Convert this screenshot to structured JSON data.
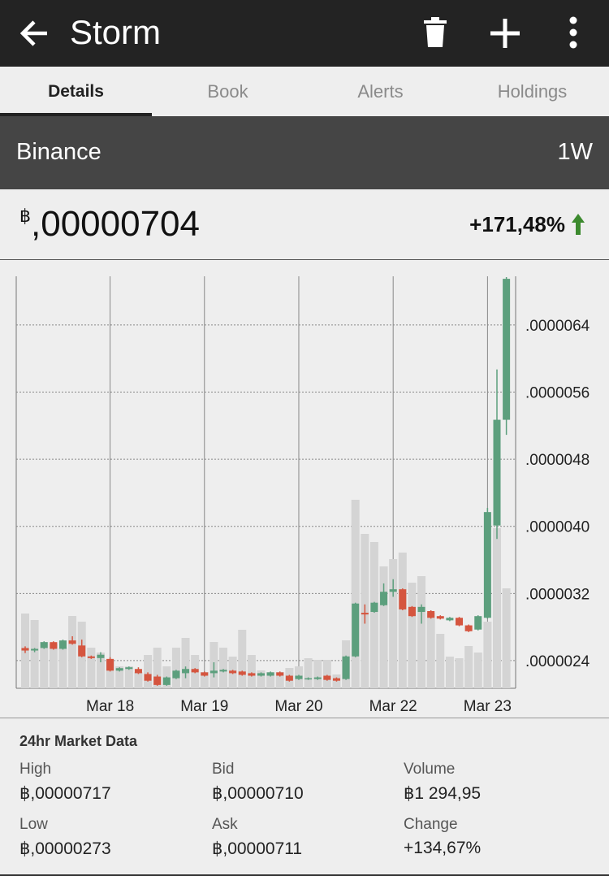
{
  "header": {
    "title": "Storm"
  },
  "tabs": [
    "Details",
    "Book",
    "Alerts",
    "Holdings"
  ],
  "exchange": {
    "name": "Binance",
    "period": "1W"
  },
  "price": {
    "symbol": "฿",
    "value": ",00000704",
    "change": "+171,48%"
  },
  "chart_data": {
    "type": "candlestick",
    "categories": [
      null,
      null,
      null,
      null,
      null,
      null,
      null,
      null,
      null,
      null,
      null,
      null,
      null,
      null,
      null,
      null,
      null,
      null,
      null,
      null,
      null,
      null,
      null,
      null,
      null,
      null,
      null,
      null,
      null,
      null,
      null,
      null,
      null,
      null,
      null,
      null,
      null,
      null,
      null,
      null,
      null,
      null,
      null,
      null,
      null,
      null,
      null,
      null,
      null,
      null,
      null,
      null
    ],
    "open": [
      2.55e-06,
      2.52e-06,
      2.55e-06,
      2.62e-06,
      2.54e-06,
      2.64e-06,
      2.58e-06,
      2.45e-06,
      2.43e-06,
      2.42e-06,
      2.28e-06,
      2.3e-06,
      2.3e-06,
      2.24e-06,
      2.21e-06,
      2.11e-06,
      2.19e-06,
      2.25e-06,
      2.3e-06,
      2.26e-06,
      2.25e-06,
      2.27e-06,
      2.28e-06,
      2.27e-06,
      2.25e-06,
      2.22e-06,
      2.22e-06,
      2.26e-06,
      2.22e-06,
      2.18e-06,
      2.18e-06,
      2.18e-06,
      2.22e-06,
      2.19e-06,
      2.18e-06,
      2.45e-06,
      2.97e-06,
      2.98e-06,
      3.06e-06,
      3.22e-06,
      3.25e-06,
      3.04e-06,
      2.98e-06,
      2.99e-06,
      2.93e-06,
      2.88e-06,
      2.91e-06,
      2.82e-06,
      2.77e-06,
      2.91e-06,
      4.01e-06,
      5.27e-06
    ],
    "high": [
      2.57e-06,
      2.55e-06,
      2.63e-06,
      2.63e-06,
      2.65e-06,
      2.69e-06,
      2.65e-06,
      2.46e-06,
      2.5e-06,
      2.44e-06,
      2.32e-06,
      2.33e-06,
      2.32e-06,
      2.26e-06,
      2.23e-06,
      2.21e-06,
      2.29e-06,
      2.33e-06,
      2.31e-06,
      2.27e-06,
      2.38e-06,
      2.3e-06,
      2.29e-06,
      2.28e-06,
      2.26e-06,
      2.26e-06,
      2.27e-06,
      2.27e-06,
      2.23e-06,
      2.23e-06,
      2.2e-06,
      2.21e-06,
      2.23e-06,
      2.2e-06,
      2.46e-06,
      3.09e-06,
      3.07e-06,
      3.1e-06,
      3.32e-06,
      3.37e-06,
      3.26e-06,
      3.05e-06,
      3.07e-06,
      3e-06,
      2.94e-06,
      2.92e-06,
      2.92e-06,
      2.83e-06,
      2.94e-06,
      4.22e-06,
      5.87e-06,
      6.97e-06
    ],
    "low": [
      2.49e-06,
      2.5e-06,
      2.54e-06,
      2.53e-06,
      2.53e-06,
      2.59e-06,
      2.44e-06,
      2.42e-06,
      2.38e-06,
      2.27e-06,
      2.27e-06,
      2.29e-06,
      2.24e-06,
      2.15e-06,
      2.1e-06,
      2.1e-06,
      2.18e-06,
      2.19e-06,
      2.25e-06,
      2.21e-06,
      2.2e-06,
      2.26e-06,
      2.24e-06,
      2.22e-06,
      2.21e-06,
      2.21e-06,
      2.21e-06,
      2.21e-06,
      2.15e-06,
      2.17e-06,
      2.17e-06,
      2.17e-06,
      2.16e-06,
      2.15e-06,
      2.17e-06,
      2.44e-06,
      2.84e-06,
      2.97e-06,
      3.05e-06,
      3.16e-06,
      3e-06,
      2.92e-06,
      2.84e-06,
      2.9e-06,
      2.89e-06,
      2.87e-06,
      2.81e-06,
      2.74e-06,
      2.76e-06,
      2.9e-06,
      3.85e-06,
      5.09e-06
    ],
    "close": [
      2.52e-06,
      2.54e-06,
      2.62e-06,
      2.54e-06,
      2.64e-06,
      2.6e-06,
      2.45e-06,
      2.43e-06,
      2.47e-06,
      2.28e-06,
      2.31e-06,
      2.32e-06,
      2.25e-06,
      2.16e-06,
      2.11e-06,
      2.2e-06,
      2.28e-06,
      2.3e-06,
      2.26e-06,
      2.22e-06,
      2.28e-06,
      2.29e-06,
      2.25e-06,
      2.23e-06,
      2.22e-06,
      2.25e-06,
      2.26e-06,
      2.22e-06,
      2.16e-06,
      2.22e-06,
      2.19e-06,
      2.2e-06,
      2.17e-06,
      2.16e-06,
      2.45e-06,
      3.08e-06,
      2.95e-06,
      3.09e-06,
      3.22e-06,
      3.25e-06,
      3.01e-06,
      2.93e-06,
      3.04e-06,
      2.91e-06,
      2.9e-06,
      2.91e-06,
      2.82e-06,
      2.75e-06,
      2.93e-06,
      4.17e-06,
      5.27e-06,
      6.95e-06
    ],
    "volume": [
      92,
      84,
      57,
      55,
      50,
      89,
      82,
      50,
      44,
      35,
      27,
      27,
      20,
      41,
      50,
      27,
      50,
      62,
      41,
      20,
      57,
      50,
      39,
      72,
      41,
      22,
      20,
      20,
      25,
      27,
      37,
      35,
      35,
      17,
      59,
      232,
      190,
      180,
      150,
      159,
      167,
      130,
      138,
      93,
      67,
      39,
      37,
      52,
      44,
      82,
      197,
      123
    ],
    "up_color": "#5c9f7d",
    "down_color": "#d5553f",
    "volume_color": "#d4d4d4",
    "ylim": [
      2.07e-06,
      6.98e-06
    ],
    "yticks": [
      {
        "value": 2.4e-06,
        "label": ".0000024"
      },
      {
        "value": 3.2e-06,
        "label": ".0000032"
      },
      {
        "value": 4e-06,
        "label": ".0000040"
      },
      {
        "value": 4.8e-06,
        "label": ".0000048"
      },
      {
        "value": 5.6e-06,
        "label": ".0000056"
      },
      {
        "value": 6.4e-06,
        "label": ".0000064"
      }
    ],
    "xticks": [
      {
        "value": 9,
        "label": "Mar 18"
      },
      {
        "value": 19,
        "label": "Mar 19"
      },
      {
        "value": 29,
        "label": "Mar 20"
      },
      {
        "value": 39,
        "label": "Mar 22"
      },
      {
        "value": 49,
        "label": "Mar 23"
      }
    ],
    "grid": true
  },
  "market_data": {
    "title": "24hr Market Data",
    "items": [
      {
        "label": "High",
        "value": "฿,00000717"
      },
      {
        "label": "Bid",
        "value": "฿,00000710"
      },
      {
        "label": "Volume",
        "value": "฿1 294,95"
      },
      {
        "label": "Low",
        "value": "฿,00000273"
      },
      {
        "label": "Ask",
        "value": "฿,00000711"
      },
      {
        "label": "Change",
        "value": "+134,67%"
      }
    ]
  }
}
